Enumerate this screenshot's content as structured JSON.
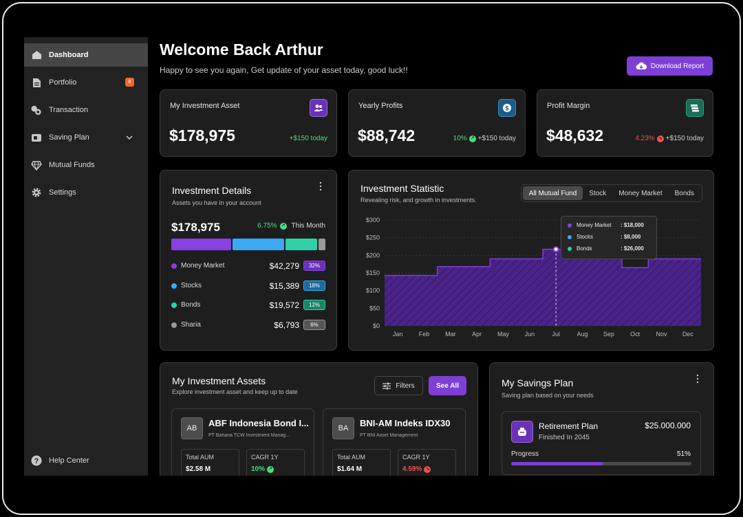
{
  "sidebar": {
    "items": [
      {
        "label": "Dashboard",
        "icon": "home-icon"
      },
      {
        "label": "Portfolio",
        "icon": "document-icon",
        "badge": "8"
      },
      {
        "label": "Transaction",
        "icon": "coins-icon"
      },
      {
        "label": "Saving Plan",
        "icon": "wallet-icon"
      },
      {
        "label": "Mutual Funds",
        "icon": "diamond-icon"
      },
      {
        "label": "Settings",
        "icon": "gear-icon"
      }
    ],
    "help": "Help Center"
  },
  "header": {
    "title": "Welcome Back Arthur",
    "subtitle": "Happy to see you again, Get update of your asset today, good luck!!",
    "download_label": "Download Report"
  },
  "stats": [
    {
      "title": "My Investment Asset",
      "value": "$178,975",
      "change": "+$150 today",
      "icon_color": "#7e3fd6"
    },
    {
      "title": "Yearly Profits",
      "value": "$88,742",
      "percent": "10%",
      "change": "+$150 today",
      "icon_color": "#1e6ea8"
    },
    {
      "title": "Profit Margin",
      "value": "$48,632",
      "percent": "4.23%",
      "change": "+$150 today",
      "icon_color": "#1d8a6a"
    }
  ],
  "details": {
    "title": "Investment Details",
    "subtitle": "Assets you have in your account",
    "total": "$178,975",
    "percent": "6.75%",
    "period": "This Month",
    "rows": [
      {
        "label": "Money Market",
        "value": "$42,279",
        "pct": "32%",
        "color": "#8a3fe0",
        "pct_bg": "#6a32b8"
      },
      {
        "label": "Stocks",
        "value": "$15,389",
        "pct": "18%",
        "color": "#39a9f5",
        "pct_bg": "#1d6a9c"
      },
      {
        "label": "Bonds",
        "value": "$19,572",
        "pct": "12%",
        "color": "#2fd0a7",
        "pct_bg": "#1d8466"
      },
      {
        "label": "Sharia",
        "value": "$6,793",
        "pct": "6%",
        "color": "#9a9a9a",
        "pct_bg": "#555555"
      }
    ],
    "bar_fractions": [
      0.4,
      0.345,
      0.21,
      0.045
    ]
  },
  "statistic": {
    "title": "Investment Statistic",
    "subtitle": "Revealing risk, and growth in investments.",
    "tabs": [
      "All Mutual Fund",
      "Stock",
      "Money Market",
      "Bonds"
    ],
    "tooltip": [
      {
        "label": "Money Market",
        "value": ": $18,000",
        "color": "#8a3fe0"
      },
      {
        "label": "Stocks",
        "value": ": $8,000",
        "color": "#39a9f5"
      },
      {
        "label": "Bonds",
        "value": ": $26,000",
        "color": "#2fd0a7"
      }
    ]
  },
  "chart_data": {
    "type": "area",
    "categories": [
      "Jan",
      "Feb",
      "Mar",
      "Apr",
      "May",
      "Jun",
      "Jul",
      "Aug",
      "Sep",
      "Oct",
      "Nov",
      "Dec"
    ],
    "values": [
      143,
      143,
      168,
      168,
      190,
      190,
      217,
      217,
      217,
      165,
      190,
      190
    ],
    "y_ticks": [
      "$0",
      "$50",
      "$100",
      "$150",
      "$200",
      "$250",
      "$300"
    ],
    "ylim": [
      0,
      300
    ],
    "highlight": "Jul",
    "color": "#7e3fd6"
  },
  "assets": {
    "title": "My Investment Assets",
    "subtitle": "Explore investment asset and keep up to date",
    "filters_label": "Filters",
    "see_all_label": "See All",
    "cards": [
      {
        "logo": "AB",
        "name": "ABF Indonesia Bond I...",
        "company": "PT Bahana TCW Investment Manag...",
        "aum_label": "Total AUM",
        "aum": "$2.58 M",
        "cagr_label": "CAGR 1Y",
        "cagr": "10%"
      },
      {
        "logo": "BA",
        "name": "BNI-AM Indeks IDX30",
        "company": "PT BNI Asset Management",
        "aum_label": "Total AUM",
        "aum": "$1.64 M",
        "cagr_label": "CAGR 1Y",
        "cagr": "4.59%"
      }
    ]
  },
  "savings": {
    "title": "My Savings Plan",
    "subtitle": "Saving plan based on your needs",
    "plan_name": "Retirement Plan",
    "plan_sub": "Finished In 2045",
    "plan_amount": "$25.000.000",
    "progress_label": "Progress",
    "progress_value": "51%",
    "progress": 0.51
  }
}
